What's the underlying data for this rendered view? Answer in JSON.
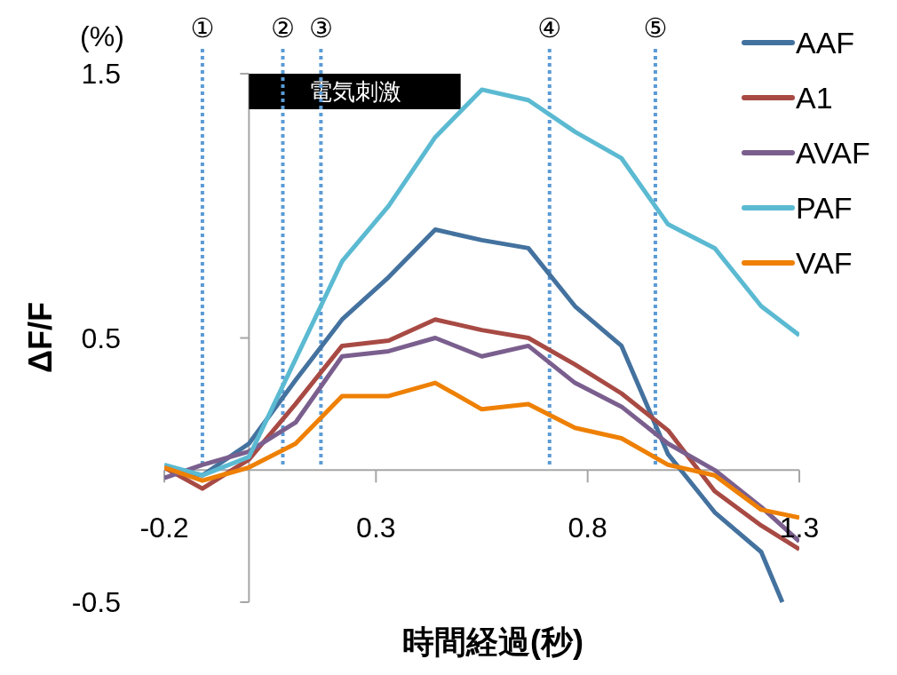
{
  "chart_data": {
    "type": "line",
    "xlabel": "時間経過(秒)",
    "ylabel": "ΔF/F",
    "annotations": [
      "(%)"
    ],
    "bands": [
      {
        "axis": "x",
        "from": 0,
        "to": 0.5,
        "label": "電気刺激",
        "color": "#000000"
      }
    ],
    "x": [
      -0.2,
      -0.11,
      0,
      0.11,
      0.22,
      0.33,
      0.44,
      0.55,
      0.66,
      0.77,
      0.88,
      0.99,
      1.1,
      1.21,
      1.3
    ],
    "series": [
      {
        "name": "AAF",
        "color": "#44729f",
        "x": [
          -0.2,
          -0.11,
          0,
          0.11,
          0.22,
          0.33,
          0.44,
          0.55,
          0.66,
          0.77,
          0.88,
          0.99,
          1.1,
          1.21,
          1.26
        ],
        "values": [
          0.01,
          -0.02,
          0.1,
          0.34,
          0.57,
          0.73,
          0.91,
          0.87,
          0.84,
          0.62,
          0.47,
          0.06,
          -0.16,
          -0.31,
          -0.5
        ]
      },
      {
        "name": "A1",
        "color": "#a84a44",
        "values": [
          0.01,
          -0.07,
          0.04,
          0.25,
          0.47,
          0.49,
          0.57,
          0.53,
          0.5,
          0.4,
          0.29,
          0.15,
          -0.08,
          -0.21,
          -0.3
        ]
      },
      {
        "name": "AVAF",
        "color": "#7a5f8e",
        "values": [
          -0.03,
          0.02,
          0.07,
          0.18,
          0.43,
          0.45,
          0.5,
          0.43,
          0.47,
          0.33,
          0.24,
          0.1,
          0.0,
          -0.14,
          -0.27
        ]
      },
      {
        "name": "PAF",
        "color": "#5bbad2",
        "values": [
          0.02,
          -0.02,
          0.05,
          0.42,
          0.79,
          1.0,
          1.26,
          1.44,
          1.4,
          1.28,
          1.18,
          0.93,
          0.84,
          0.62,
          0.51
        ]
      },
      {
        "name": "VAF",
        "color": "#ee8004",
        "values": [
          0.01,
          -0.04,
          0.01,
          0.1,
          0.28,
          0.28,
          0.33,
          0.23,
          0.25,
          0.16,
          0.12,
          0.02,
          -0.02,
          -0.15,
          -0.18
        ]
      }
    ],
    "xlim": [
      -0.2,
      1.3
    ],
    "xticks": [
      -0.2,
      0.3,
      0.8,
      1.3
    ],
    "ylim": [
      -0.5,
      1.5
    ],
    "yticks": [
      -0.5,
      0.5,
      1.5
    ],
    "ref_lines": [
      {
        "axis": "x",
        "value": -0.11,
        "label": "①",
        "color": "#5b9bd5",
        "line_style": "dotted"
      },
      {
        "axis": "x",
        "value": 0.08,
        "label": "②",
        "color": "#5b9bd5",
        "line_style": "dotted"
      },
      {
        "axis": "x",
        "value": 0.17,
        "label": "③",
        "color": "#5b9bd5",
        "line_style": "dotted"
      },
      {
        "axis": "x",
        "value": 0.71,
        "label": "④",
        "color": "#5b9bd5",
        "line_style": "dotted"
      },
      {
        "axis": "x",
        "value": 0.96,
        "label": "⑤",
        "color": "#5b9bd5",
        "line_style": "dotted"
      }
    ],
    "legend": "right",
    "grid": false,
    "marker": "none",
    "line_style": "solid"
  }
}
